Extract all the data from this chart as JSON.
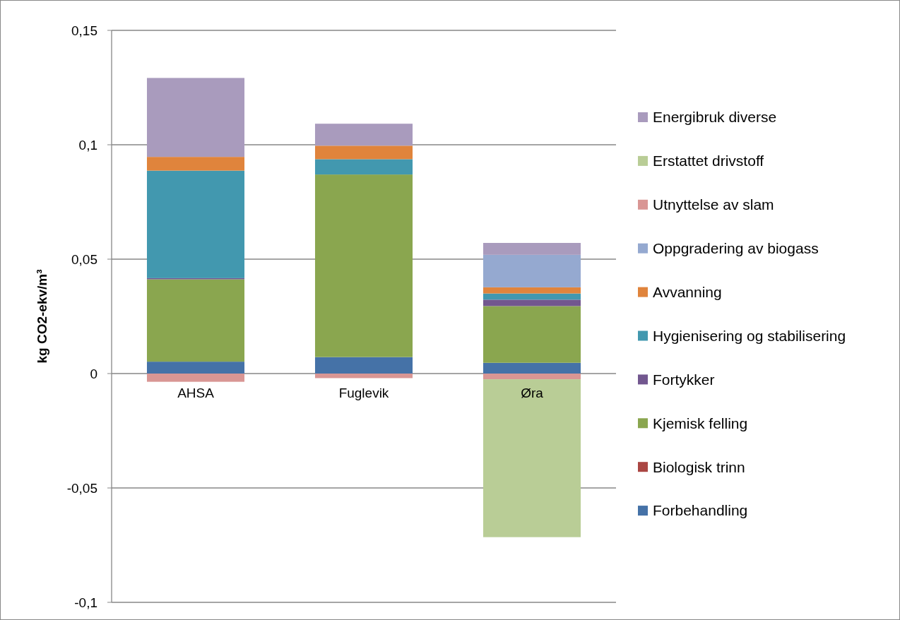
{
  "chart_data": {
    "type": "bar",
    "stacked": true,
    "ylabel": "kg CO2-ekv/m³",
    "categories": [
      "AHSA",
      "Fuglevik",
      "Øra"
    ],
    "ylim": [
      -0.1,
      0.15
    ],
    "yticks": [
      {
        "value": -0.1,
        "label": "-0,1"
      },
      {
        "value": -0.05,
        "label": "-0,05"
      },
      0,
      {
        "value": 0.05,
        "label": "0,05"
      },
      {
        "value": 0.1,
        "label": "0,1"
      },
      {
        "value": 0.15,
        "label": "0,15"
      }
    ],
    "grid": "y",
    "legend": "right",
    "series": [
      {
        "name": "Forbehandling",
        "color": "#4572a7",
        "values": [
          0.0052,
          0.0072,
          0.0047
        ]
      },
      {
        "name": "Biologisk trinn",
        "color": "#aa4643",
        "values": [
          0,
          0,
          0
        ]
      },
      {
        "name": "Kjemisk felling",
        "color": "#8aa64f",
        "values": [
          0.036,
          0.0798,
          0.0248
        ]
      },
      {
        "name": "Fortykker",
        "color": "#72578f",
        "values": [
          0.0005,
          0,
          0.0028
        ]
      },
      {
        "name": "Hygienisering og stabilisering",
        "color": "#4298af",
        "values": [
          0.047,
          0.0067,
          0.0027
        ]
      },
      {
        "name": "Avvanning",
        "color": "#e0843c",
        "values": [
          0.006,
          0.0059,
          0.0027
        ]
      },
      {
        "name": "Oppgradering av biogass",
        "color": "#95a9d0",
        "values": [
          0,
          0,
          0.0142
        ]
      },
      {
        "name": "Utnyttelse av slam",
        "color": "#d99694",
        "values": [
          -0.0036,
          -0.002,
          -0.0025
        ]
      },
      {
        "name": "Erstattet drivstoff",
        "color": "#b9cd96",
        "values": [
          0,
          0,
          -0.069
        ]
      },
      {
        "name": "Energibruk diverse",
        "color": "#a99bbd",
        "values": [
          0.0345,
          0.0096,
          0.0052
        ]
      }
    ]
  }
}
